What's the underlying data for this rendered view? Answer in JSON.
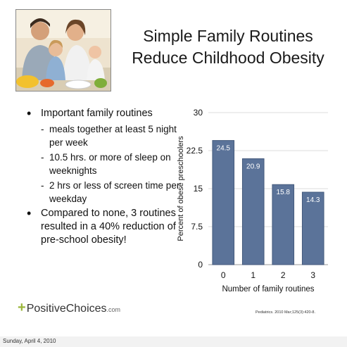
{
  "slide": {
    "title_line1": "Simple Family Routines",
    "title_line2": "Reduce Childhood Obesity",
    "bullets": [
      {
        "text": "Important family routines",
        "sub": [
          "meals together at least 5 night per week",
          "10.5 hrs. or more of sleep on weeknights",
          "2 hrs or less of  screen time per weekday"
        ]
      },
      {
        "text": "Compared to none, 3 routines resulted in a 40% reduction of pre-school obesity!",
        "sub": []
      }
    ],
    "logo": {
      "main": "PositiveChoices",
      "suffix": ".com"
    },
    "citation": "Pediatrics. 2010 Mar;125(3):420-8."
  },
  "footer": {
    "date": "Sunday, April 4, 2010"
  },
  "colors": {
    "bar": "#5b7399",
    "bar_edge": "#445a7c",
    "accent": "#9bb63a"
  },
  "icons": [
    "family-photo-icon",
    "plus-icon"
  ],
  "chart_data": {
    "type": "bar",
    "categories": [
      "0",
      "1",
      "2",
      "3"
    ],
    "values": [
      24.5,
      20.9,
      15.8,
      14.3
    ],
    "data_labels": [
      "24.5",
      "20.9",
      "15.8",
      "14.3"
    ],
    "title": "",
    "xlabel": "Number of family routines",
    "ylabel": "Percent of obese preschoolers",
    "ylim": [
      0,
      30
    ],
    "yticks": [
      "0",
      "7.5",
      "15",
      "22.5",
      "30"
    ],
    "grid": true,
    "legend": "none"
  }
}
